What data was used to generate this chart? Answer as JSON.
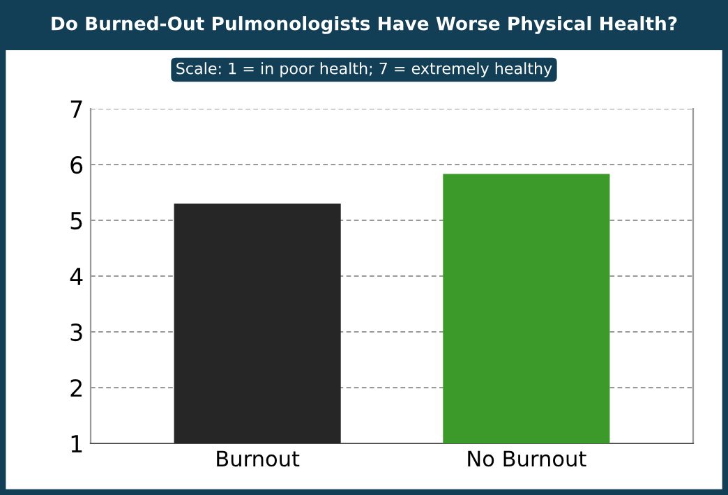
{
  "chart_data": {
    "type": "bar",
    "title": "Do Burned-Out Pulmonologists Have Worse Physical Health?",
    "subtitle": "Scale: 1 = in poor health; 7 = extremely healthy",
    "categories": [
      "Burnout",
      "No Burnout"
    ],
    "values": [
      5.3,
      5.83
    ],
    "colors": [
      "#262626",
      "#3c9a2a"
    ],
    "ylim": [
      1,
      7
    ],
    "yticks": [
      1,
      2,
      3,
      4,
      5,
      6,
      7
    ],
    "grid": "y"
  }
}
